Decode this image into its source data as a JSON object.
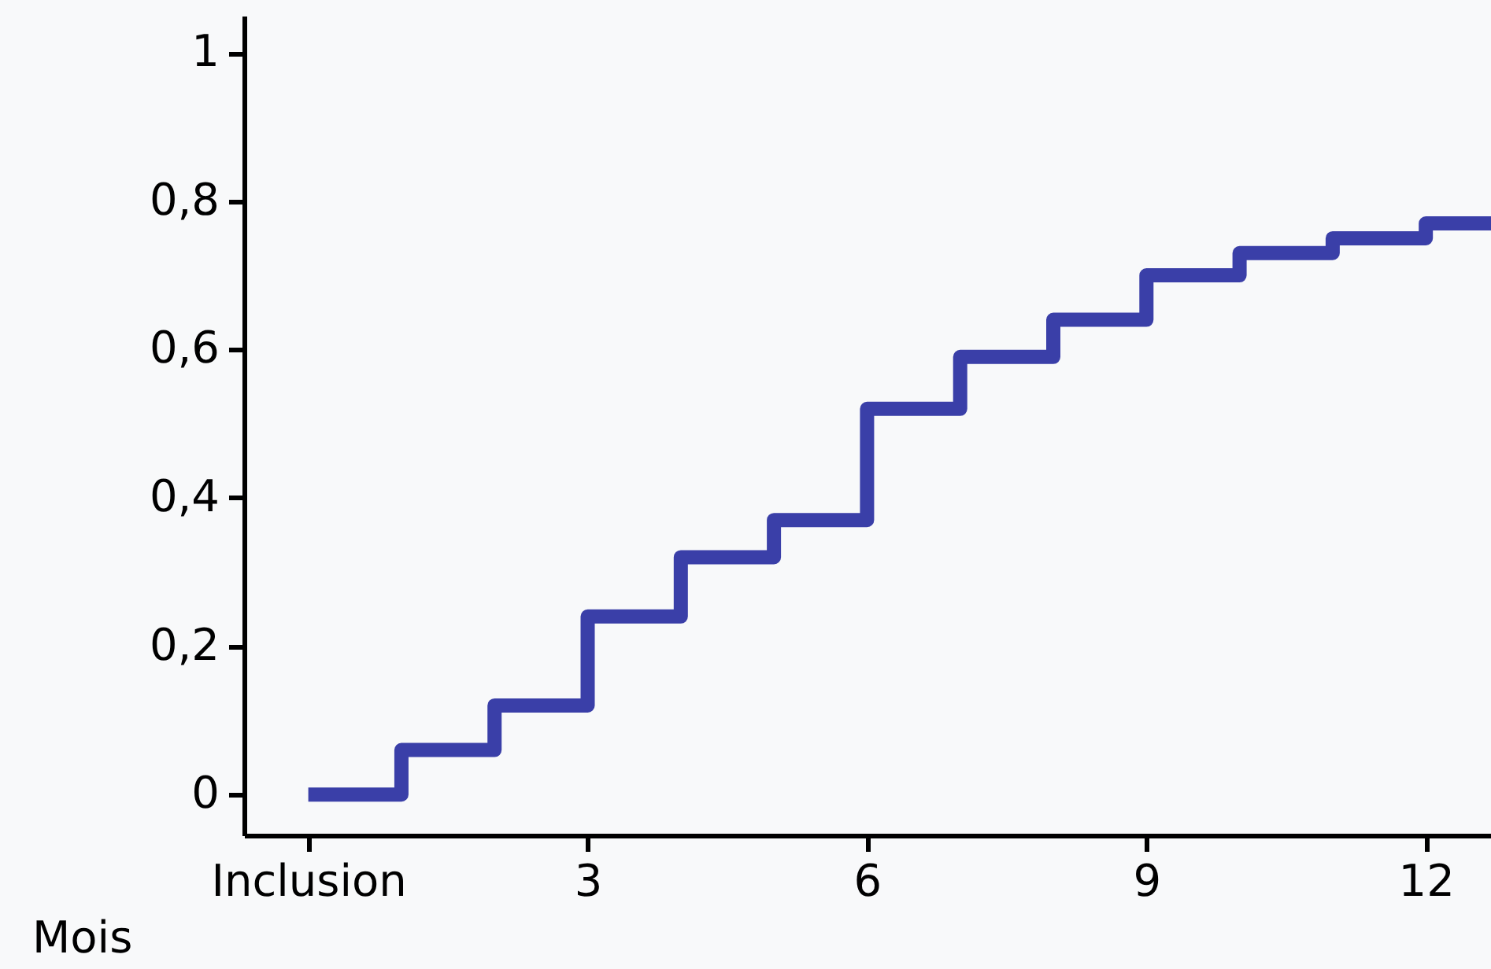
{
  "chart_data": {
    "type": "step",
    "xlabel": "Mois",
    "x": [
      0,
      1,
      2,
      3,
      4,
      5,
      6,
      7,
      8,
      9,
      10,
      11,
      12,
      12.7
    ],
    "series": [
      {
        "color": "#3a3fa8",
        "values": [
          0,
          0.06,
          0.12,
          0.24,
          0.32,
          0.37,
          0.52,
          0.59,
          0.64,
          0.7,
          0.73,
          0.75,
          0.77,
          0.77
        ]
      }
    ],
    "xlim": [
      -0.69,
      12.7
    ],
    "ylim": [
      -0.055,
      1.05
    ],
    "xticks": [
      {
        "value": 0,
        "label": "Inclusion"
      },
      3,
      6,
      9,
      12
    ],
    "yticks": [
      0,
      {
        "value": 0.2,
        "label": "0,2"
      },
      {
        "value": 0.4,
        "label": "0,4"
      },
      {
        "value": 0.6,
        "label": "0,6"
      },
      {
        "value": 0.8,
        "label": "0,8"
      },
      1
    ],
    "grid": false,
    "line_style": "solid",
    "marker": "none"
  }
}
